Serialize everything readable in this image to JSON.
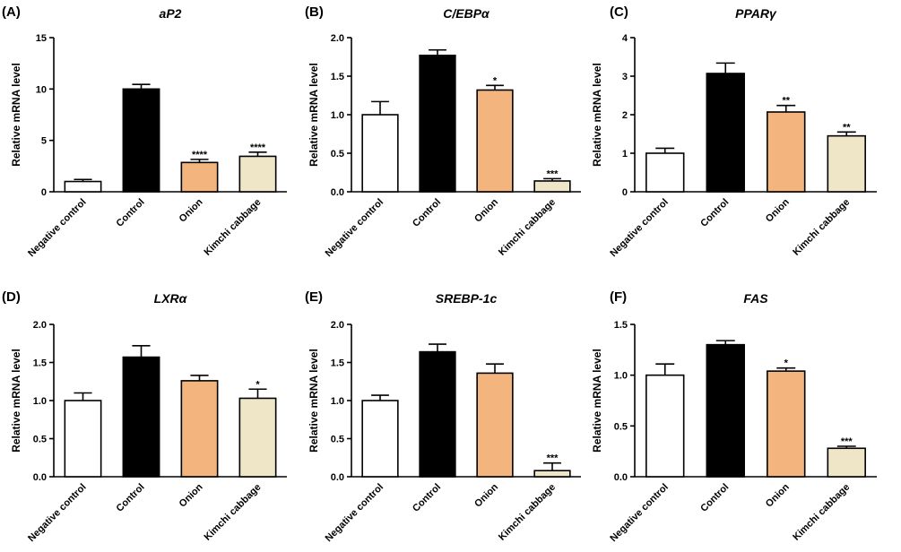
{
  "colors": {
    "Negative control": "#ffffff",
    "Control": "#000000",
    "Onion": "#f3b47d",
    "Kimchi cabbage": "#efe6c7",
    "axis": "#000000"
  },
  "chart_data": [
    {
      "panel": "(A)",
      "type": "bar",
      "title": "aP2",
      "ylabel": "Relative mRNA level",
      "categories": [
        "Negative control",
        "Control",
        "Onion",
        "Kimchi cabbage"
      ],
      "values": [
        1.0,
        10.0,
        2.85,
        3.45
      ],
      "errors": [
        0.2,
        0.45,
        0.3,
        0.4
      ],
      "significance": [
        "",
        "",
        "****",
        "****"
      ],
      "ylim": [
        0,
        15
      ],
      "yticks": [
        0,
        5,
        10,
        15
      ]
    },
    {
      "panel": "(B)",
      "type": "bar",
      "title": "C/EBPα",
      "ylabel": "Relative mRNA level",
      "categories": [
        "Negative control",
        "Control",
        "Onion",
        "Kimchi cabbage"
      ],
      "values": [
        1.0,
        1.77,
        1.32,
        0.14
      ],
      "errors": [
        0.17,
        0.07,
        0.06,
        0.03
      ],
      "significance": [
        "",
        "",
        "*",
        "***"
      ],
      "ylim": [
        0,
        2.0
      ],
      "yticks": [
        "0.0",
        "0.5",
        "1.0",
        "1.5",
        "2.0"
      ]
    },
    {
      "panel": "(C)",
      "type": "bar",
      "title": "PPARγ",
      "ylabel": "Relative mRNA level",
      "categories": [
        "Negative control",
        "Control",
        "Onion",
        "Kimchi cabbage"
      ],
      "values": [
        1.0,
        3.07,
        2.07,
        1.45
      ],
      "errors": [
        0.13,
        0.27,
        0.17,
        0.1
      ],
      "significance": [
        "",
        "",
        "**",
        "**"
      ],
      "ylim": [
        0,
        4
      ],
      "yticks": [
        0,
        1,
        2,
        3,
        4
      ]
    },
    {
      "panel": "(D)",
      "type": "bar",
      "title": "LXRα",
      "ylabel": "Relative mRNA level",
      "categories": [
        "Negative control",
        "Control",
        "Onion",
        "Kimchi cabbage"
      ],
      "values": [
        1.0,
        1.57,
        1.26,
        1.03
      ],
      "errors": [
        0.1,
        0.15,
        0.07,
        0.12
      ],
      "significance": [
        "",
        "",
        "",
        "*"
      ],
      "ylim": [
        0,
        2.0
      ],
      "yticks": [
        "0.0",
        "0.5",
        "1.0",
        "1.5",
        "2.0"
      ]
    },
    {
      "panel": "(E)",
      "type": "bar",
      "title": "SREBP-1c",
      "ylabel": "Relative mRNA level",
      "categories": [
        "Negative control",
        "Control",
        "Onion",
        "Kimchi cabbage"
      ],
      "values": [
        1.0,
        1.64,
        1.36,
        0.08
      ],
      "errors": [
        0.07,
        0.1,
        0.12,
        0.1
      ],
      "significance": [
        "",
        "",
        "",
        "***"
      ],
      "ylim": [
        0,
        2.0
      ],
      "yticks": [
        "0.0",
        "0.5",
        "1.0",
        "1.5",
        "2.0"
      ]
    },
    {
      "panel": "(F)",
      "type": "bar",
      "title": "FAS",
      "ylabel": "Relative mRNA level",
      "categories": [
        "Negative control",
        "Control",
        "Onion",
        "Kimchi cabbage"
      ],
      "values": [
        1.0,
        1.3,
        1.04,
        0.28
      ],
      "errors": [
        0.11,
        0.04,
        0.03,
        0.02
      ],
      "significance": [
        "",
        "",
        "*",
        "***"
      ],
      "ylim": [
        0,
        1.5
      ],
      "yticks": [
        "0.0",
        "0.5",
        "1.0",
        "1.5"
      ]
    }
  ]
}
